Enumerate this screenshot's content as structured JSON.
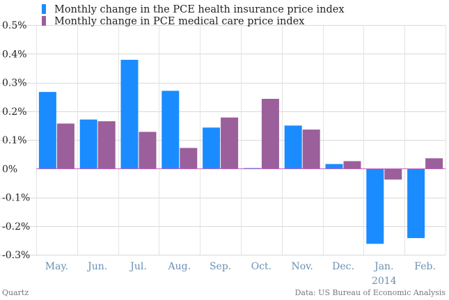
{
  "chart_data": {
    "type": "bar",
    "categories": [
      "May.",
      "Jun.",
      "Jul.",
      "Aug.",
      "Sep.",
      "Oct.",
      "Nov.",
      "Dec.",
      "Jan.",
      "Feb."
    ],
    "category_sublabels": [
      "",
      "",
      "",
      "",
      "",
      "",
      "",
      "",
      "2014",
      ""
    ],
    "series": [
      {
        "name": "Monthly change in the PCE health insurance price index",
        "values": [
          0.267,
          0.171,
          0.379,
          0.271,
          0.143,
          0.002,
          0.15,
          0.016,
          -0.262,
          -0.242
        ]
      },
      {
        "name": "Monthly change in PCE medical care price index",
        "values": [
          0.157,
          0.165,
          0.128,
          0.072,
          0.178,
          0.243,
          0.136,
          0.026,
          -0.038,
          0.036
        ]
      }
    ],
    "ylim": [
      -0.3,
      0.5
    ],
    "yticks": [
      0.5,
      0.4,
      0.3,
      0.2,
      0.1,
      0,
      -0.1,
      -0.2,
      -0.3
    ],
    "ytick_labels": [
      "0.5%",
      "0.4%",
      "0.3%",
      "0.2%",
      "0.1%",
      "0%",
      "-0.1%",
      "-0.2%",
      "-0.3%"
    ],
    "title": "",
    "xlabel": "",
    "ylabel": "",
    "legend_position": "top-left",
    "grid": true,
    "colors": {
      "series_0": "#1a8cff",
      "series_1": "#9b5f9b",
      "zero_line": "#c060c0"
    }
  },
  "footer": {
    "left": "Quartz",
    "right": "Data: US Bureau of Economic Analysis"
  }
}
